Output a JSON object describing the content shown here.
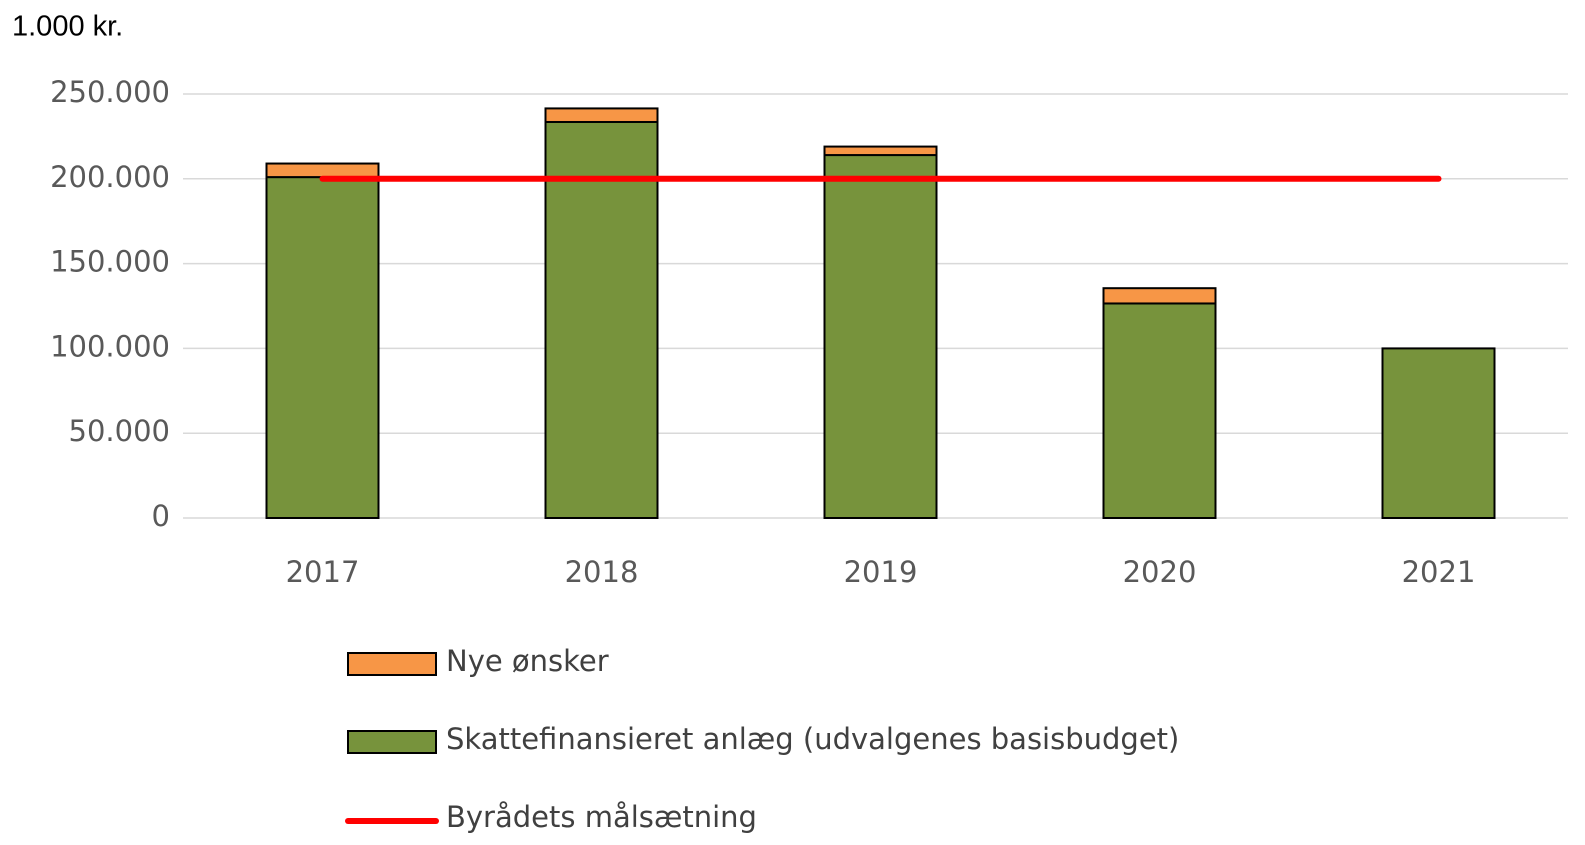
{
  "chart_data": {
    "type": "bar",
    "y_axis_label": "1.000 kr.",
    "categories": [
      "2017",
      "2018",
      "2019",
      "2020",
      "2021"
    ],
    "series": [
      {
        "name": "Nye ønsker",
        "type": "bar",
        "color": "#f79646",
        "values": [
          8000,
          8000,
          5000,
          9000,
          0
        ]
      },
      {
        "name": "Skattefinansieret anlæg (udvalgenes basisbudget)",
        "type": "bar",
        "color": "#77933c",
        "values": [
          201000,
          233500,
          214000,
          126500,
          100000
        ]
      },
      {
        "name": "Byrådets målsætning",
        "type": "line",
        "color": "#ff0000",
        "values": [
          200000,
          200000,
          200000,
          200000,
          200000
        ]
      }
    ],
    "ylim": [
      0,
      250000
    ],
    "yticks": [
      0,
      {
        "value": 50000,
        "label": "50.000"
      },
      {
        "value": 100000,
        "label": "100.000"
      },
      {
        "value": 150000,
        "label": "150.000"
      },
      {
        "value": 200000,
        "label": "200.000"
      },
      {
        "value": 250000,
        "label": "250.000"
      }
    ],
    "grid": true,
    "stacked": true,
    "legend": "bottom"
  }
}
